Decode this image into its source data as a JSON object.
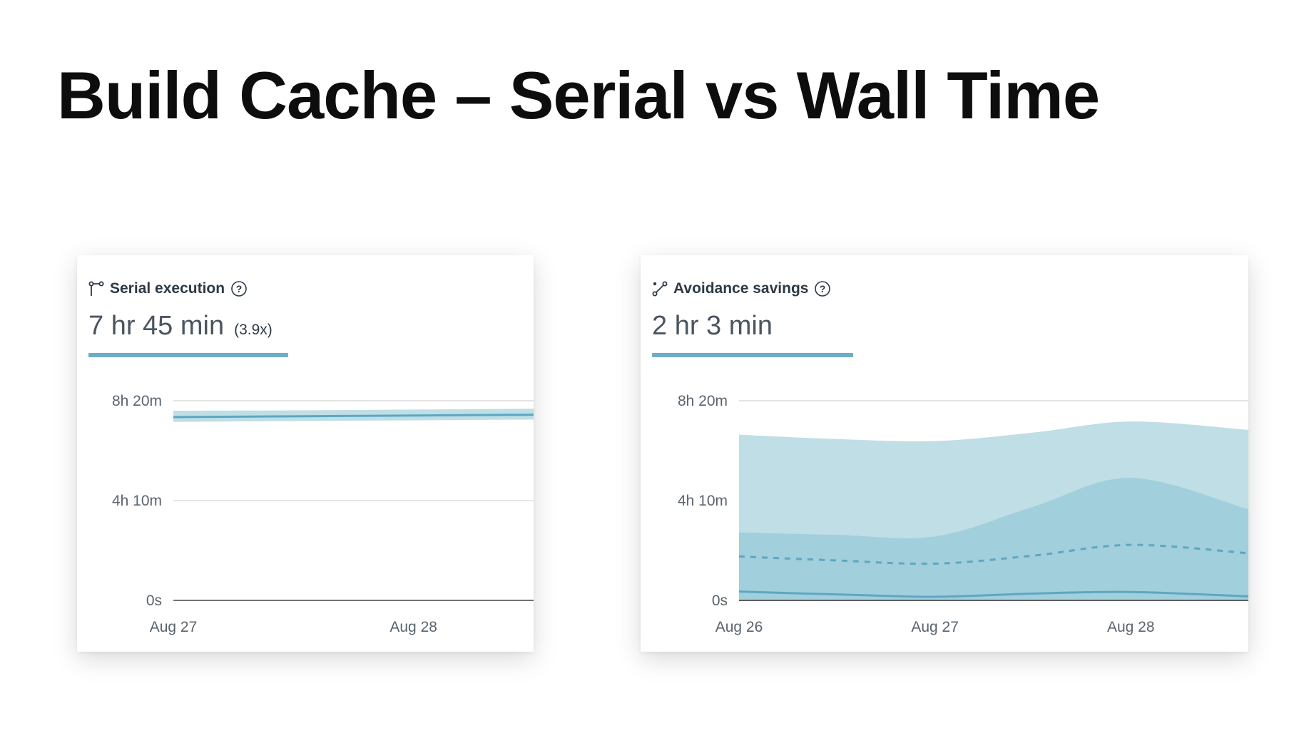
{
  "title": "Build Cache – Serial vs Wall Time",
  "colors": {
    "light_band": "#bfdee6",
    "mid_band": "#a1cfdc",
    "line": "#5da7c1",
    "accent": "#6eadc4",
    "grid": "#dcdcdc",
    "axis": "#444444"
  },
  "cards": [
    {
      "label": "Serial execution",
      "icon": "branch-icon",
      "value": "7 hr 45 min",
      "sub": "(3.9x)",
      "help_icon": "help-circle-icon"
    },
    {
      "label": "Avoidance savings",
      "icon": "route-icon",
      "value": "2 hr 3 min",
      "sub": "",
      "help_icon": "help-circle-icon"
    }
  ],
  "chart_data": [
    {
      "type": "area",
      "ylabel": "",
      "xlabel": "",
      "y_unit": "minutes",
      "ylim": [
        0,
        500
      ],
      "y_ticks": [
        0,
        250,
        500
      ],
      "y_tick_labels": [
        "0s",
        "4h 10m",
        "8h 20m"
      ],
      "x_ticks": [
        "Aug 27",
        "Aug 28"
      ],
      "x": [
        0,
        1,
        2,
        3
      ],
      "x_range": [
        0,
        3
      ],
      "x_tick_positions": [
        0,
        2
      ],
      "band": {
        "upper": [
          475,
          476,
          478,
          480
        ],
        "lower": [
          447,
          449,
          451,
          453
        ]
      },
      "line": [
        459,
        461,
        463,
        465
      ],
      "grid": true
    },
    {
      "type": "area",
      "ylabel": "",
      "xlabel": "",
      "y_unit": "minutes",
      "ylim": [
        0,
        500
      ],
      "y_ticks": [
        0,
        250,
        500
      ],
      "y_tick_labels": [
        "0s",
        "4h 10m",
        "8h 20m"
      ],
      "x_ticks": [
        "Aug 26",
        "Aug 27",
        "Aug 28"
      ],
      "x": [
        0,
        0.5,
        1,
        1.5,
        2,
        2.6
      ],
      "x_range": [
        0,
        2.6
      ],
      "x_tick_positions": [
        0,
        1,
        2
      ],
      "outer_band": {
        "upper": [
          415,
          404,
          399,
          420,
          448,
          427
        ],
        "lower": [
          0,
          0,
          0,
          0,
          0,
          0
        ]
      },
      "inner_band": {
        "upper": [
          170,
          164,
          160,
          234,
          307,
          228
        ],
        "lower": [
          0,
          0,
          0,
          0,
          0,
          0
        ]
      },
      "dashed_line": [
        110,
        100,
        92,
        112,
        139,
        118
      ],
      "solid_line": [
        22,
        15,
        9,
        17,
        21,
        10
      ],
      "grid": true
    }
  ]
}
